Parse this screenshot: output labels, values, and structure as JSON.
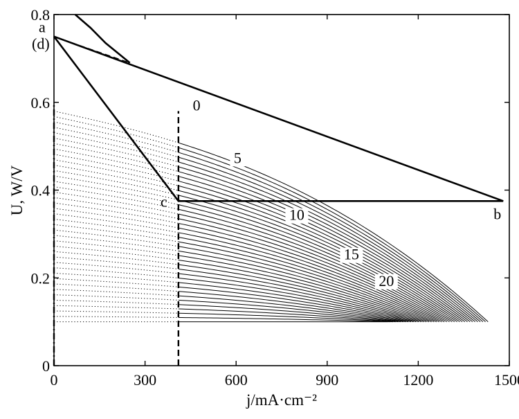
{
  "chart_data": {
    "type": "line",
    "xlabel": "j/mA·cm⁻²",
    "ylabel": "U, W/V",
    "xlim": [
      0,
      1500
    ],
    "ylim": [
      0,
      0.8
    ],
    "x_ticks": [
      {
        "value": 0,
        "label": "0"
      },
      {
        "value": 300,
        "label": "300"
      },
      {
        "value": 600,
        "label": "600"
      },
      {
        "value": 900,
        "label": "900"
      },
      {
        "value": 1200,
        "label": "1200"
      },
      {
        "value": 1500,
        "label": "1500"
      }
    ],
    "y_ticks": [
      {
        "value": 0,
        "label": "0"
      },
      {
        "value": 0.2,
        "label": "0.2"
      },
      {
        "value": 0.4,
        "label": "0.4"
      },
      {
        "value": 0.6,
        "label": "0.6"
      },
      {
        "value": 0.8,
        "label": "0.8"
      }
    ],
    "grid": false,
    "points": [
      {
        "label": "a",
        "x": 0,
        "y": 0.75
      },
      {
        "label": "(d)",
        "x": 0,
        "y": 0.75
      },
      {
        "label": "c",
        "x": 410,
        "y": 0.375
      },
      {
        "label": "b",
        "x": 1480,
        "y": 0.375
      }
    ],
    "guide_lines": [
      {
        "style": "dash-dot",
        "x": 0,
        "y_range": [
          0,
          0.6
        ]
      },
      {
        "style": "dashed",
        "x": 410,
        "y_range": [
          0,
          0.58
        ]
      }
    ],
    "operating_lines": [
      {
        "style": "solid-thick",
        "points": [
          [
            0,
            0.75
          ],
          [
            410,
            0.375
          ],
          [
            1480,
            0.375
          ]
        ]
      },
      {
        "style": "solid-thick",
        "points": [
          [
            0,
            0.75
          ],
          [
            1480,
            0.375
          ]
        ]
      },
      {
        "style": "solid-thick",
        "points": [
          [
            70,
            0.8
          ],
          [
            120,
            0.77
          ],
          [
            170,
            0.735
          ],
          [
            250,
            0.69
          ]
        ]
      },
      {
        "style": "dashed-thin",
        "points": [
          [
            0,
            0.75
          ],
          [
            250,
            0.69
          ]
        ]
      }
    ],
    "family": {
      "description_labels": [
        "0",
        "5",
        "10",
        "15",
        "20"
      ],
      "count": 40,
      "v0_start": 0.58,
      "v0_end": 0.1,
      "jmax_start": 1430,
      "jmax_end": 1100,
      "curve_end_y": 0.1,
      "shape_exponent": 2.6,
      "drop_fraction": 0.45,
      "dotted_x_range": [
        0,
        410
      ],
      "solid_x_start": 410
    },
    "curve_labels": [
      {
        "text": "0",
        "x": 470,
        "y": 0.585
      },
      {
        "text": "5",
        "x": 605,
        "y": 0.465
      },
      {
        "text": "10",
        "x": 800,
        "y": 0.335
      },
      {
        "text": "15",
        "x": 980,
        "y": 0.245
      },
      {
        "text": "20",
        "x": 1095,
        "y": 0.185
      }
    ]
  }
}
